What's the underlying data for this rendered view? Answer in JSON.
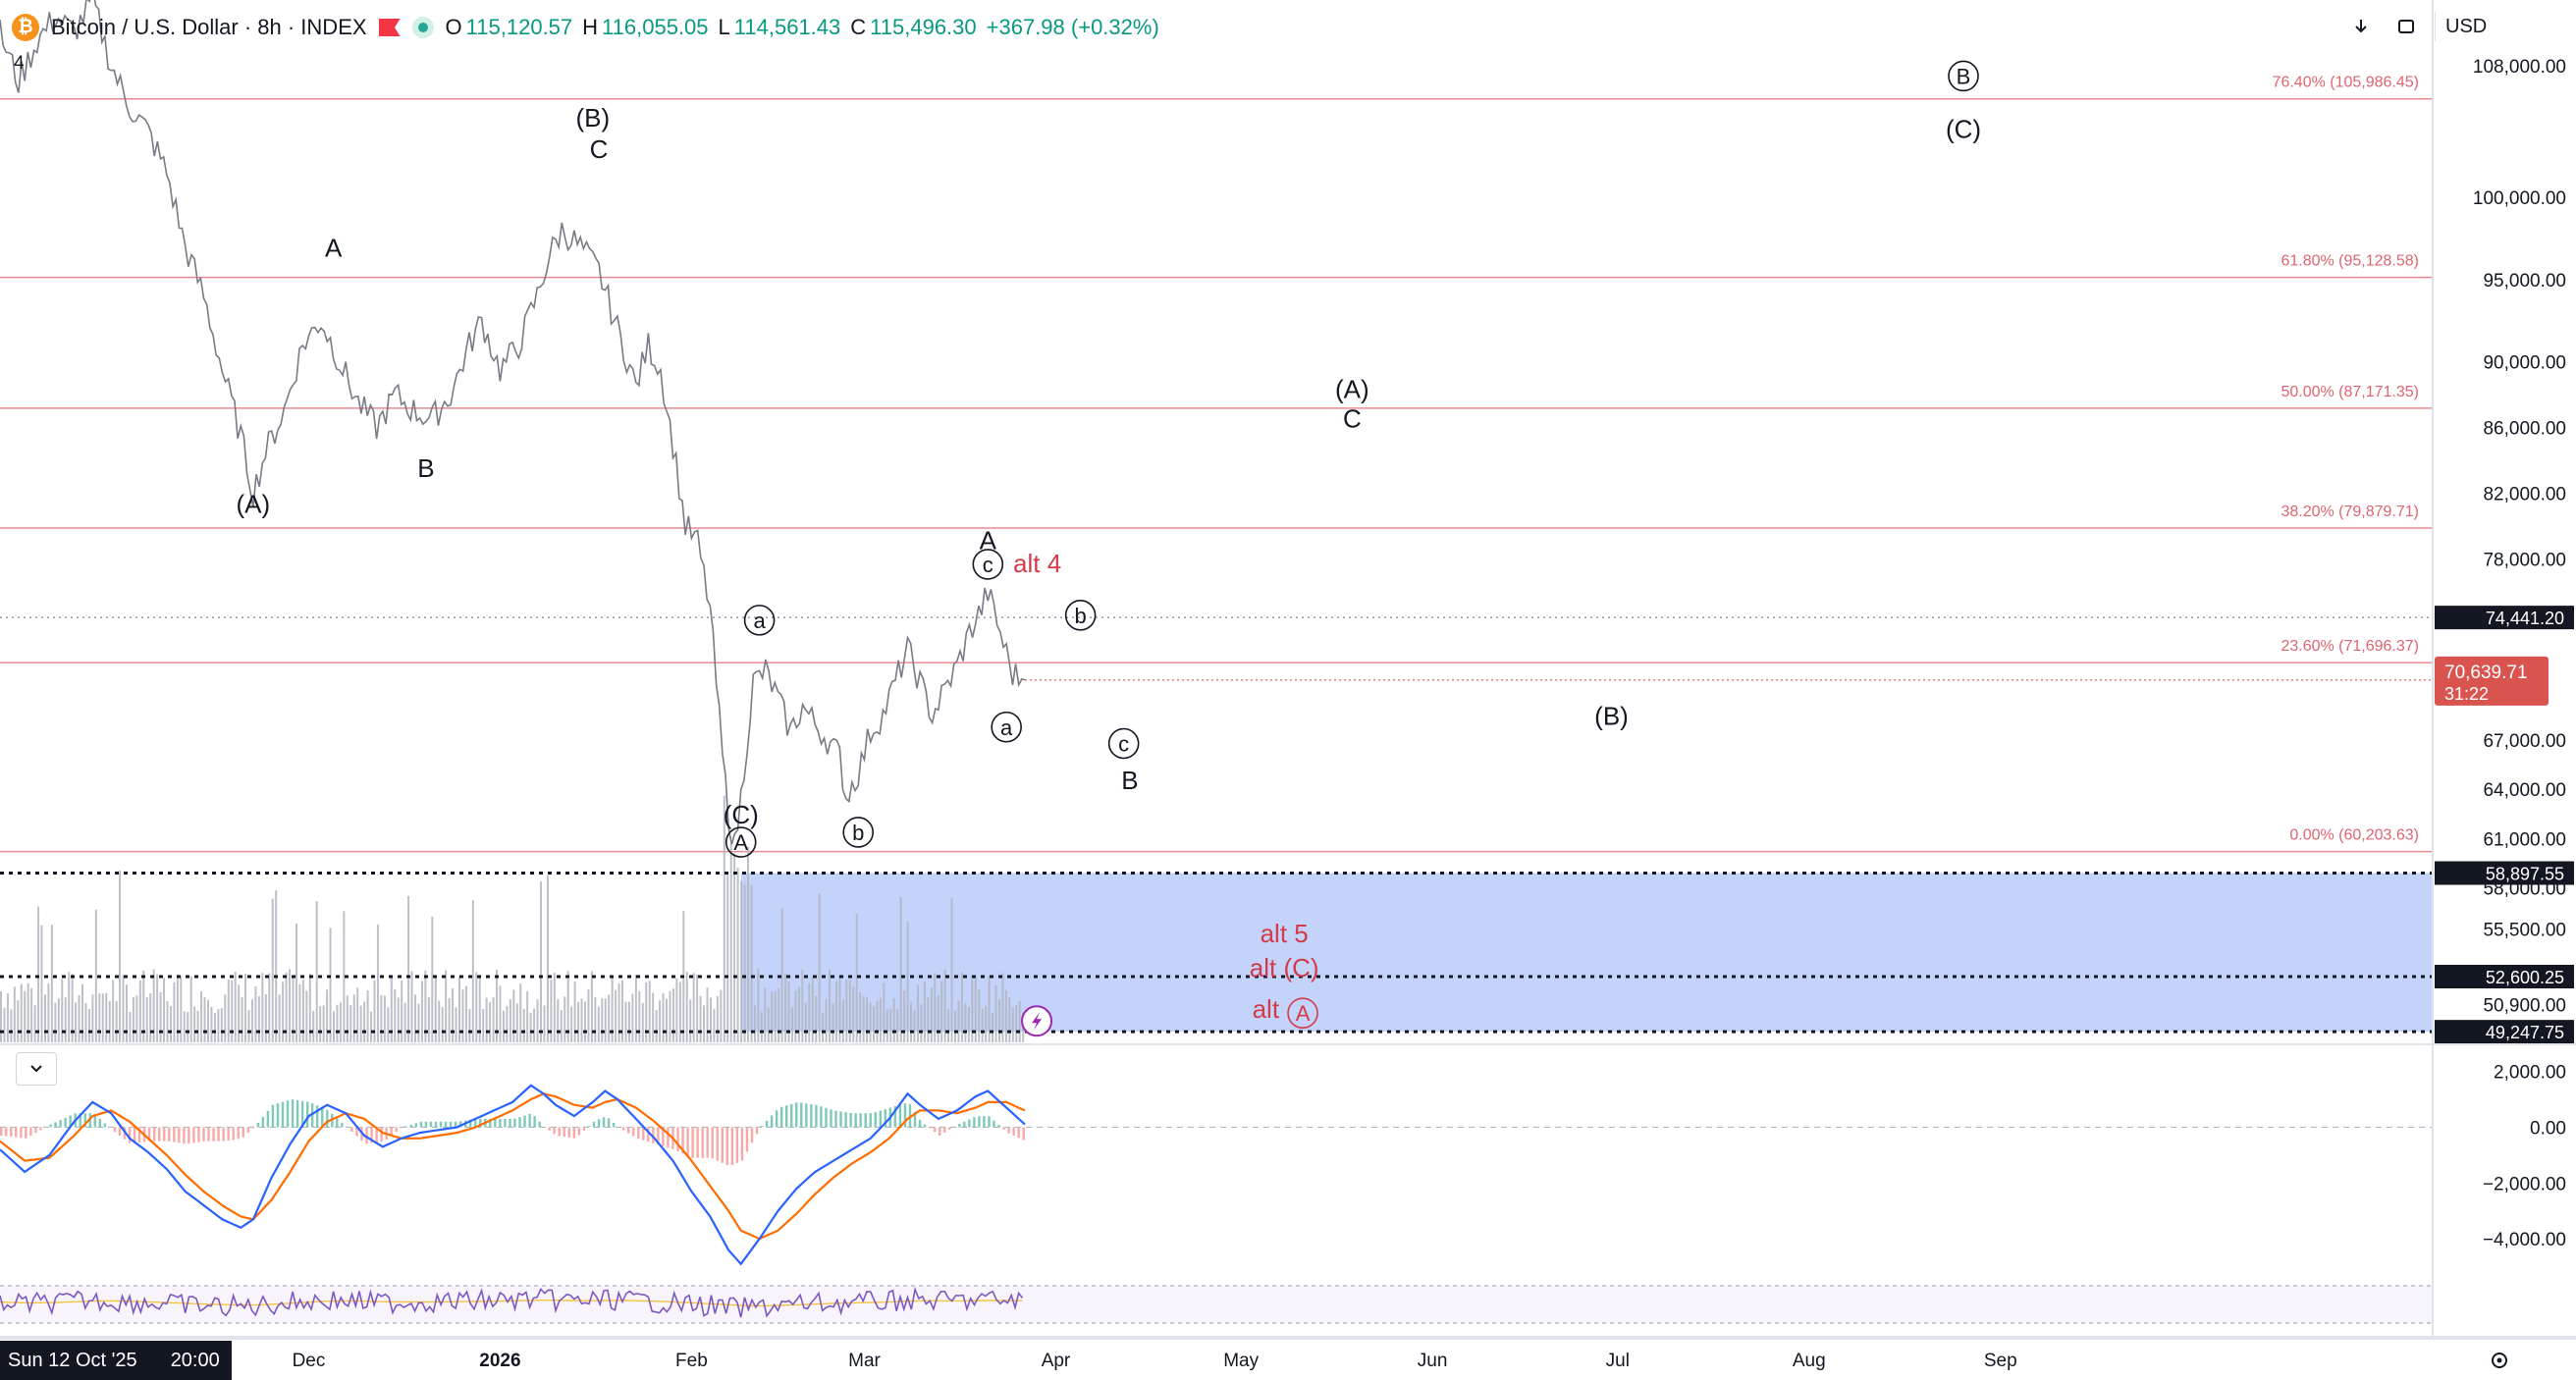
{
  "header": {
    "symbol_title": "Bitcoin / U.S. Dollar · 8h · INDEX",
    "coin_glyph": "₿",
    "o_label": "O",
    "o_value": "115,120.57",
    "h_label": "H",
    "h_value": "116,055.05",
    "l_label": "L",
    "l_value": "114,561.43",
    "c_label": "C",
    "c_value": "115,496.30",
    "change": "+367.98 (+0.32%)",
    "indicator_count": "4",
    "currency": "USD"
  },
  "icons": {
    "coin": "bitcoin-icon",
    "flag": "flag-icon",
    "status": "market-status-icon",
    "download": "arrow-down-icon",
    "fullscreen": "fullscreen-icon",
    "collapse": "chevron-down-icon",
    "settings": "gear-icon",
    "alert": "lightning-icon"
  },
  "time_axis": {
    "cursor_label": "Sun 12 Oct '25",
    "cursor_time": "20:00",
    "ticks": [
      {
        "label": "Dec",
        "day": 50,
        "bold": false
      },
      {
        "label": "2026",
        "day": 81,
        "bold": true
      },
      {
        "label": "Feb",
        "day": 112,
        "bold": false
      },
      {
        "label": "Mar",
        "day": 140,
        "bold": false
      },
      {
        "label": "Apr",
        "day": 171,
        "bold": false
      },
      {
        "label": "May",
        "day": 201,
        "bold": false
      },
      {
        "label": "Jun",
        "day": 232,
        "bold": false
      },
      {
        "label": "Jul",
        "day": 262,
        "bold": false
      },
      {
        "label": "Aug",
        "day": 293,
        "bold": false
      },
      {
        "label": "Sep",
        "day": 324,
        "bold": false
      }
    ]
  },
  "chart_data": {
    "type": "line",
    "x_unit": "days",
    "x_range": [
      0,
      394
    ],
    "price_ylim": [
      48600,
      112000
    ],
    "price_ticks": [
      108000,
      100000,
      95000,
      90000,
      86000,
      82000,
      78000,
      67000,
      64000,
      61000,
      58000,
      55500,
      50900
    ],
    "price_tick_labels": [
      "108,000.00",
      "100,000.00",
      "95,000.00",
      "90,000.00",
      "86,000.00",
      "82,000.00",
      "78,000.00",
      "67,000.00",
      "64,000.00",
      "61,000.00",
      "58,000.00",
      "55,500.00",
      "50,900.00"
    ],
    "price_path": [
      [
        0,
        110000
      ],
      [
        3,
        107000
      ],
      [
        6,
        109500
      ],
      [
        9,
        111000
      ],
      [
        12,
        110000
      ],
      [
        15,
        112000
      ],
      [
        18,
        108000
      ],
      [
        21,
        105500
      ],
      [
        24,
        104000
      ],
      [
        27,
        101500
      ],
      [
        30,
        97000
      ],
      [
        33,
        94000
      ],
      [
        36,
        89500
      ],
      [
        39,
        85500
      ],
      [
        41,
        82000
      ],
      [
        43,
        84500
      ],
      [
        46,
        87000
      ],
      [
        49,
        91000
      ],
      [
        52,
        92500
      ],
      [
        55,
        90000
      ],
      [
        58,
        87500
      ],
      [
        61,
        86000
      ],
      [
        64,
        88000
      ],
      [
        67,
        87000
      ],
      [
        70,
        86500
      ],
      [
        73,
        88000
      ],
      [
        76,
        91000
      ],
      [
        78,
        92500
      ],
      [
        81,
        89500
      ],
      [
        84,
        91000
      ],
      [
        87,
        94000
      ],
      [
        89,
        96500
      ],
      [
        91,
        98000
      ],
      [
        94,
        97000
      ],
      [
        97,
        95500
      ],
      [
        100,
        92000
      ],
      [
        103,
        88500
      ],
      [
        105,
        91000
      ],
      [
        107,
        89500
      ],
      [
        109,
        85000
      ],
      [
        111,
        80000
      ],
      [
        113,
        79000
      ],
      [
        115,
        75000
      ],
      [
        117,
        66000
      ],
      [
        118,
        62500
      ],
      [
        119,
        60500
      ],
      [
        120,
        63500
      ],
      [
        122,
        70500
      ],
      [
        124,
        71200
      ],
      [
        126,
        69500
      ],
      [
        128,
        67500
      ],
      [
        130,
        69000
      ],
      [
        132,
        68000
      ],
      [
        134,
        67000
      ],
      [
        136,
        66000
      ],
      [
        137,
        63500
      ],
      [
        139,
        65000
      ],
      [
        141,
        67500
      ],
      [
        143,
        68500
      ],
      [
        145,
        70500
      ],
      [
        147,
        72500
      ],
      [
        149,
        70500
      ],
      [
        151,
        68500
      ],
      [
        153,
        70000
      ],
      [
        155,
        71500
      ],
      [
        157,
        73500
      ],
      [
        159,
        75000
      ],
      [
        160,
        76000
      ],
      [
        162,
        73500
      ],
      [
        164,
        71000
      ],
      [
        166,
        70639.71
      ]
    ],
    "current_price": "70,639.71",
    "countdown": "31:22",
    "fib_levels": [
      {
        "value": 105986.45,
        "label": "76.40% (105,986.45)"
      },
      {
        "value": 95128.58,
        "label": "61.80% (95,128.58)"
      },
      {
        "value": 87171.35,
        "label": "50.00% (87,171.35)"
      },
      {
        "value": 79879.71,
        "label": "38.20% (79,879.71)"
      },
      {
        "value": 71696.37,
        "label": "23.60% (71,696.37)"
      },
      {
        "value": 60203.63,
        "label": "0.00% (60,203.63)"
      }
    ],
    "horizontal_lines": [
      {
        "value": 74441.2,
        "label": "74,441.20",
        "style": "dotted-gray"
      },
      {
        "value": 58897.55,
        "label": "58,897.55",
        "style": "dotted-black"
      },
      {
        "value": 52600.25,
        "label": "52,600.25",
        "style": "dotted-black"
      },
      {
        "value": 49247.75,
        "label": "49,247.75",
        "style": "dotted-black"
      }
    ],
    "target_zone": {
      "from_day": 120,
      "to_day": 394,
      "top": 58897.55,
      "bottom": 49247.75,
      "color": "#3d6cf0"
    },
    "wave_labels": [
      {
        "text": "(A)",
        "day": 41,
        "price": 80800,
        "color": "#131722",
        "circled": false
      },
      {
        "text": "A",
        "day": 54,
        "price": 96400,
        "color": "#131722",
        "circled": false
      },
      {
        "text": "B",
        "day": 69,
        "price": 83000,
        "color": "#131722",
        "circled": false
      },
      {
        "text": "(B)",
        "day": 96,
        "price": 104300,
        "color": "#131722",
        "circled": false
      },
      {
        "text": "C",
        "day": 97,
        "price": 102400,
        "color": "#131722",
        "circled": false
      },
      {
        "text": "(C)",
        "day": 120,
        "price": 61900,
        "color": "#131722",
        "circled": false
      },
      {
        "text": "A",
        "day": 120,
        "price": 60300,
        "color": "#131722",
        "circled": true
      },
      {
        "text": "a",
        "day": 123,
        "price": 73800,
        "color": "#131722",
        "circled": true
      },
      {
        "text": "b",
        "day": 139,
        "price": 60900,
        "color": "#131722",
        "circled": true
      },
      {
        "text": "A",
        "day": 160,
        "price": 78600,
        "color": "#131722",
        "circled": false
      },
      {
        "text": "c",
        "day": 160,
        "price": 77200,
        "color": "#131722",
        "circled": true
      },
      {
        "text": "alt 4",
        "day": 168,
        "price": 77200,
        "color": "#d23c4a",
        "circled": false
      },
      {
        "text": "b",
        "day": 175,
        "price": 74100,
        "color": "#131722",
        "circled": true
      },
      {
        "text": "a",
        "day": 163,
        "price": 67300,
        "color": "#131722",
        "circled": true
      },
      {
        "text": "c",
        "day": 182,
        "price": 66300,
        "color": "#131722",
        "circled": true
      },
      {
        "text": "B",
        "day": 183,
        "price": 64000,
        "color": "#131722",
        "circled": false
      },
      {
        "text": "(A)",
        "day": 219,
        "price": 87800,
        "color": "#131722",
        "circled": false
      },
      {
        "text": "C",
        "day": 219,
        "price": 86000,
        "color": "#131722",
        "circled": false
      },
      {
        "text": "(B)",
        "day": 261,
        "price": 67900,
        "color": "#131722",
        "circled": false
      },
      {
        "text": "B",
        "day": 318,
        "price": 106900,
        "color": "#131722",
        "circled": true
      },
      {
        "text": "(C)",
        "day": 318,
        "price": 103600,
        "color": "#131722",
        "circled": false
      },
      {
        "text": "alt 5",
        "day": 208,
        "price": 54700,
        "color": "#d23c4a",
        "circled": false
      },
      {
        "text": "alt (C)",
        "day": 208,
        "price": 52600,
        "color": "#d23c4a",
        "circled": false
      },
      {
        "text": "alt",
        "day": 205,
        "price": 50100,
        "color": "#d23c4a",
        "circled": false
      },
      {
        "text": "A",
        "day": 211,
        "price": 49900,
        "color": "#d23c4a",
        "circled": true
      }
    ],
    "macd": {
      "ylim": [
        -5400,
        2900
      ],
      "ticks": [
        2000,
        0,
        -2000,
        -4000
      ],
      "tick_labels": [
        "2,000.00",
        "0.00",
        "−2,000.00",
        "−4,000.00"
      ],
      "macd_line": [
        [
          0,
          -800
        ],
        [
          4,
          -1600
        ],
        [
          8,
          -1000
        ],
        [
          12,
          200
        ],
        [
          15,
          900
        ],
        [
          18,
          500
        ],
        [
          21,
          -400
        ],
        [
          24,
          -900
        ],
        [
          27,
          -1500
        ],
        [
          30,
          -2300
        ],
        [
          33,
          -2800
        ],
        [
          36,
          -3300
        ],
        [
          39,
          -3600
        ],
        [
          41,
          -3300
        ],
        [
          44,
          -1800
        ],
        [
          47,
          -600
        ],
        [
          50,
          400
        ],
        [
          53,
          800
        ],
        [
          56,
          500
        ],
        [
          59,
          -300
        ],
        [
          62,
          -700
        ],
        [
          65,
          -400
        ],
        [
          68,
          -200
        ],
        [
          71,
          -100
        ],
        [
          74,
          0
        ],
        [
          77,
          300
        ],
        [
          80,
          600
        ],
        [
          83,
          900
        ],
        [
          86,
          1500
        ],
        [
          88,
          1200
        ],
        [
          90,
          800
        ],
        [
          93,
          400
        ],
        [
          96,
          900
        ],
        [
          98,
          1300
        ],
        [
          100,
          1000
        ],
        [
          103,
          300
        ],
        [
          106,
          -400
        ],
        [
          109,
          -1200
        ],
        [
          112,
          -2300
        ],
        [
          115,
          -3200
        ],
        [
          118,
          -4400
        ],
        [
          120,
          -4900
        ],
        [
          123,
          -4000
        ],
        [
          126,
          -3000
        ],
        [
          129,
          -2200
        ],
        [
          132,
          -1600
        ],
        [
          135,
          -1200
        ],
        [
          138,
          -800
        ],
        [
          141,
          -400
        ],
        [
          144,
          300
        ],
        [
          147,
          1200
        ],
        [
          149,
          800
        ],
        [
          152,
          300
        ],
        [
          155,
          600
        ],
        [
          158,
          1100
        ],
        [
          160,
          1300
        ],
        [
          163,
          700
        ],
        [
          166,
          100
        ]
      ],
      "signal_line": [
        [
          0,
          -500
        ],
        [
          4,
          -1200
        ],
        [
          8,
          -1100
        ],
        [
          12,
          -300
        ],
        [
          15,
          400
        ],
        [
          18,
          600
        ],
        [
          21,
          200
        ],
        [
          24,
          -400
        ],
        [
          27,
          -1000
        ],
        [
          30,
          -1700
        ],
        [
          33,
          -2300
        ],
        [
          36,
          -2800
        ],
        [
          39,
          -3200
        ],
        [
          41,
          -3300
        ],
        [
          44,
          -2600
        ],
        [
          47,
          -1600
        ],
        [
          50,
          -500
        ],
        [
          53,
          200
        ],
        [
          56,
          500
        ],
        [
          59,
          300
        ],
        [
          62,
          -200
        ],
        [
          65,
          -400
        ],
        [
          68,
          -400
        ],
        [
          71,
          -300
        ],
        [
          74,
          -200
        ],
        [
          77,
          0
        ],
        [
          80,
          300
        ],
        [
          83,
          600
        ],
        [
          86,
          1000
        ],
        [
          88,
          1200
        ],
        [
          90,
          1100
        ],
        [
          93,
          800
        ],
        [
          96,
          700
        ],
        [
          98,
          900
        ],
        [
          100,
          1000
        ],
        [
          103,
          700
        ],
        [
          106,
          200
        ],
        [
          109,
          -400
        ],
        [
          112,
          -1200
        ],
        [
          115,
          -2100
        ],
        [
          118,
          -3000
        ],
        [
          120,
          -3700
        ],
        [
          123,
          -4000
        ],
        [
          126,
          -3700
        ],
        [
          129,
          -3100
        ],
        [
          132,
          -2400
        ],
        [
          135,
          -1800
        ],
        [
          138,
          -1300
        ],
        [
          141,
          -900
        ],
        [
          144,
          -400
        ],
        [
          147,
          300
        ],
        [
          149,
          600
        ],
        [
          152,
          600
        ],
        [
          155,
          500
        ],
        [
          158,
          700
        ],
        [
          160,
          900
        ],
        [
          163,
          900
        ],
        [
          166,
          600
        ]
      ]
    },
    "series": [
      {
        "name": "Bitcoin / U.S. Dollar",
        "color": "#787b86"
      },
      {
        "name": "MACD",
        "color": "#2962ff"
      },
      {
        "name": "Signal",
        "color": "#ff6d00"
      },
      {
        "name": "RSI",
        "color": "#7e57c2"
      }
    ],
    "title": "Bitcoin / U.S. Dollar · 8h · INDEX",
    "xlabel": "",
    "ylabel": "",
    "grid": false
  },
  "colors": {
    "fib": "#e88a93",
    "fib_text": "#e06470",
    "last_price_bg": "#d9534f",
    "volume": "#b2b5be",
    "zone": "#3d6cf0",
    "hist_up": "#7fc9b9",
    "hist_down": "#f7a9a7"
  }
}
